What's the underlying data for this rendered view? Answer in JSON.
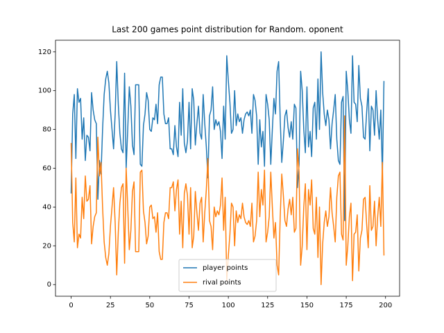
{
  "chart_data": {
    "type": "line",
    "title": "Last 200 games point distribution for Random. oponent",
    "x": [
      0,
      1,
      2,
      3,
      4,
      5,
      6,
      7,
      8,
      9,
      10,
      11,
      12,
      13,
      14,
      15,
      16,
      17,
      18,
      19,
      20,
      21,
      22,
      23,
      24,
      25,
      26,
      27,
      28,
      29,
      30,
      31,
      32,
      33,
      34,
      35,
      36,
      37,
      38,
      39,
      40,
      41,
      42,
      43,
      44,
      45,
      46,
      47,
      48,
      49,
      50,
      51,
      52,
      53,
      54,
      55,
      56,
      57,
      58,
      59,
      60,
      61,
      62,
      63,
      64,
      65,
      66,
      67,
      68,
      69,
      70,
      71,
      72,
      73,
      74,
      75,
      76,
      77,
      78,
      79,
      80,
      81,
      82,
      83,
      84,
      85,
      86,
      87,
      88,
      89,
      90,
      91,
      92,
      93,
      94,
      95,
      96,
      97,
      98,
      99,
      100,
      101,
      102,
      103,
      104,
      105,
      106,
      107,
      108,
      109,
      110,
      111,
      112,
      113,
      114,
      115,
      116,
      117,
      118,
      119,
      120,
      121,
      122,
      123,
      124,
      125,
      126,
      127,
      128,
      129,
      130,
      131,
      132,
      133,
      134,
      135,
      136,
      137,
      138,
      139,
      140,
      141,
      142,
      143,
      144,
      145,
      146,
      147,
      148,
      149,
      150,
      151,
      152,
      153,
      154,
      155,
      156,
      157,
      158,
      159,
      160,
      161,
      162,
      163,
      164,
      165,
      166,
      167,
      168,
      169,
      170,
      171,
      172,
      173,
      174,
      175,
      176,
      177,
      178,
      179,
      180,
      181,
      182,
      183,
      184,
      185,
      186,
      187,
      188,
      189,
      190,
      191,
      192,
      193,
      194,
      195,
      196,
      197,
      198,
      199
    ],
    "series": [
      {
        "name": "player points",
        "color": "#1f77b4",
        "values": [
          47,
          88,
          98,
          65,
          101,
          94,
          96,
          75,
          86,
          64,
          77,
          76,
          69,
          99,
          90,
          85,
          83,
          44,
          64,
          57,
          80,
          98,
          106,
          110,
          104,
          90,
          80,
          70,
          88,
          115,
          93,
          78,
          70,
          68,
          109,
          60,
          80,
          102,
          92,
          72,
          67,
          103,
          103,
          103,
          62,
          61,
          82,
          88,
          99,
          95,
          80,
          79,
          86,
          85,
          93,
          83,
          103,
          107,
          107,
          88,
          83,
          83,
          86,
          70,
          70,
          67,
          82,
          71,
          66,
          94,
          77,
          101,
          73,
          68,
          74,
          94,
          70,
          101,
          95,
          72,
          83,
          92,
          78,
          75,
          98,
          83,
          71,
          55,
          87,
          90,
          102,
          80,
          85,
          82,
          84,
          79,
          65,
          92,
          75,
          118,
          105,
          94,
          78,
          80,
          100,
          82,
          88,
          84,
          86,
          78,
          85,
          88,
          89,
          87,
          90,
          78,
          98,
          95,
          87,
          62,
          85,
          71,
          79,
          61,
          98,
          93,
          85,
          62,
          80,
          96,
          88,
          110,
          115,
          85,
          63,
          74,
          87,
          90,
          81,
          76,
          84,
          75,
          93,
          91,
          50,
          62,
          110,
          100,
          80,
          68,
          102,
          71,
          79,
          66,
          91,
          94,
          75,
          106,
          80,
          120,
          99,
          88,
          82,
          90,
          85,
          70,
          83,
          90,
          98,
          75,
          64,
          62,
          94,
          97,
          33,
          110,
          100,
          85,
          78,
          118,
          94,
          93,
          84,
          113,
          96,
          92,
          76,
          75,
          89,
          101,
          69,
          92,
          90,
          77,
          100,
          85,
          75,
          90,
          57,
          105
        ]
      },
      {
        "name": "rival points",
        "color": "#ff7f0e",
        "values": [
          73,
          32,
          22,
          55,
          19,
          26,
          24,
          45,
          34,
          56,
          43,
          44,
          51,
          21,
          30,
          35,
          37,
          76,
          56,
          63,
          40,
          22,
          14,
          10,
          16,
          30,
          40,
          50,
          32,
          5,
          27,
          42,
          50,
          52,
          11,
          60,
          40,
          18,
          28,
          48,
          53,
          17,
          17,
          17,
          58,
          59,
          38,
          32,
          21,
          25,
          40,
          41,
          34,
          35,
          27,
          37,
          17,
          13,
          13,
          32,
          37,
          37,
          34,
          50,
          50,
          53,
          38,
          49,
          54,
          26,
          43,
          19,
          47,
          52,
          46,
          26,
          50,
          19,
          25,
          48,
          37,
          28,
          42,
          45,
          22,
          37,
          49,
          65,
          33,
          30,
          18,
          40,
          35,
          38,
          36,
          41,
          55,
          28,
          45,
          2,
          15,
          26,
          42,
          40,
          20,
          38,
          32,
          36,
          34,
          42,
          35,
          32,
          31,
          33,
          30,
          42,
          22,
          25,
          33,
          58,
          35,
          49,
          41,
          59,
          22,
          27,
          35,
          58,
          40,
          24,
          32,
          10,
          5,
          35,
          57,
          46,
          33,
          30,
          39,
          44,
          36,
          45,
          27,
          29,
          70,
          58,
          10,
          20,
          40,
          52,
          18,
          49,
          41,
          54,
          29,
          26,
          45,
          14,
          40,
          0,
          21,
          32,
          38,
          30,
          35,
          50,
          37,
          30,
          22,
          45,
          56,
          58,
          26,
          23,
          87,
          10,
          20,
          35,
          42,
          2,
          26,
          27,
          36,
          7,
          24,
          28,
          44,
          45,
          31,
          19,
          51,
          28,
          30,
          43,
          20,
          35,
          45,
          30,
          63,
          15
        ]
      }
    ],
    "xlim": [
      -9.95,
      208.95
    ],
    "xticks": [
      0,
      25,
      50,
      75,
      100,
      125,
      150,
      175,
      200
    ],
    "ylim": [
      -6,
      126
    ],
    "yticks": [
      0,
      20,
      40,
      60,
      80,
      100,
      120
    ],
    "legend": "lower center"
  }
}
